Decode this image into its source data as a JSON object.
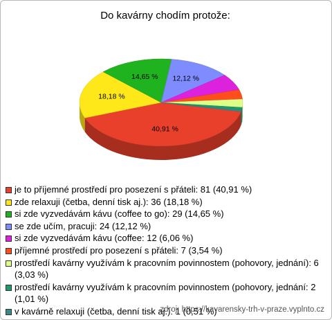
{
  "chart_data": {
    "type": "pie",
    "title": "Do kavárny chodím protože:",
    "categories": [
      "je to příjemné prostředí pro posezení s přáteli: 81 (40,91 %)",
      "zde relaxuji (četba, denní tisk aj.): 36 (18,18 %)",
      "si zde vyzvedávám kávu (coffee to go): 29 (14,65 %)",
      "se zde učím, pracuji: 24 (12,12 %)",
      "si zde vyzvedávám kávu (coffee: 12 (6,06 %)",
      "příjemné prostředí pro posezení s přáteli: 7 (3,54 %)",
      "prostředí kavárny využívám k pracovním povinnostem (pohovory, jednání): 6 (3,03 %)",
      "prostředí kavárny využívám k pracovním povinnostem (pohovory, jednání: 2 (1,01 %)",
      "v kavárně relaxuji (četba, denní tisk aj.): 1 (0,51 %)"
    ],
    "values": [
      40.91,
      18.18,
      14.65,
      12.12,
      6.06,
      3.54,
      3.03,
      1.01,
      0.51
    ],
    "value_labels": [
      "40,91 %",
      "18,18 %",
      "14,65 %",
      "12,12 %",
      null,
      null,
      null,
      null,
      null
    ],
    "colors": [
      "#e8402a",
      "#ffe81a",
      "#1fb41f",
      "#7f8cff",
      "#dd22dd",
      "#ff4e1c",
      "#ddff88",
      "#1e9a68",
      "#3a8a8a"
    ],
    "source": "zdroj: https://kavarensky-trh-v-praze.vyplnto.cz"
  }
}
